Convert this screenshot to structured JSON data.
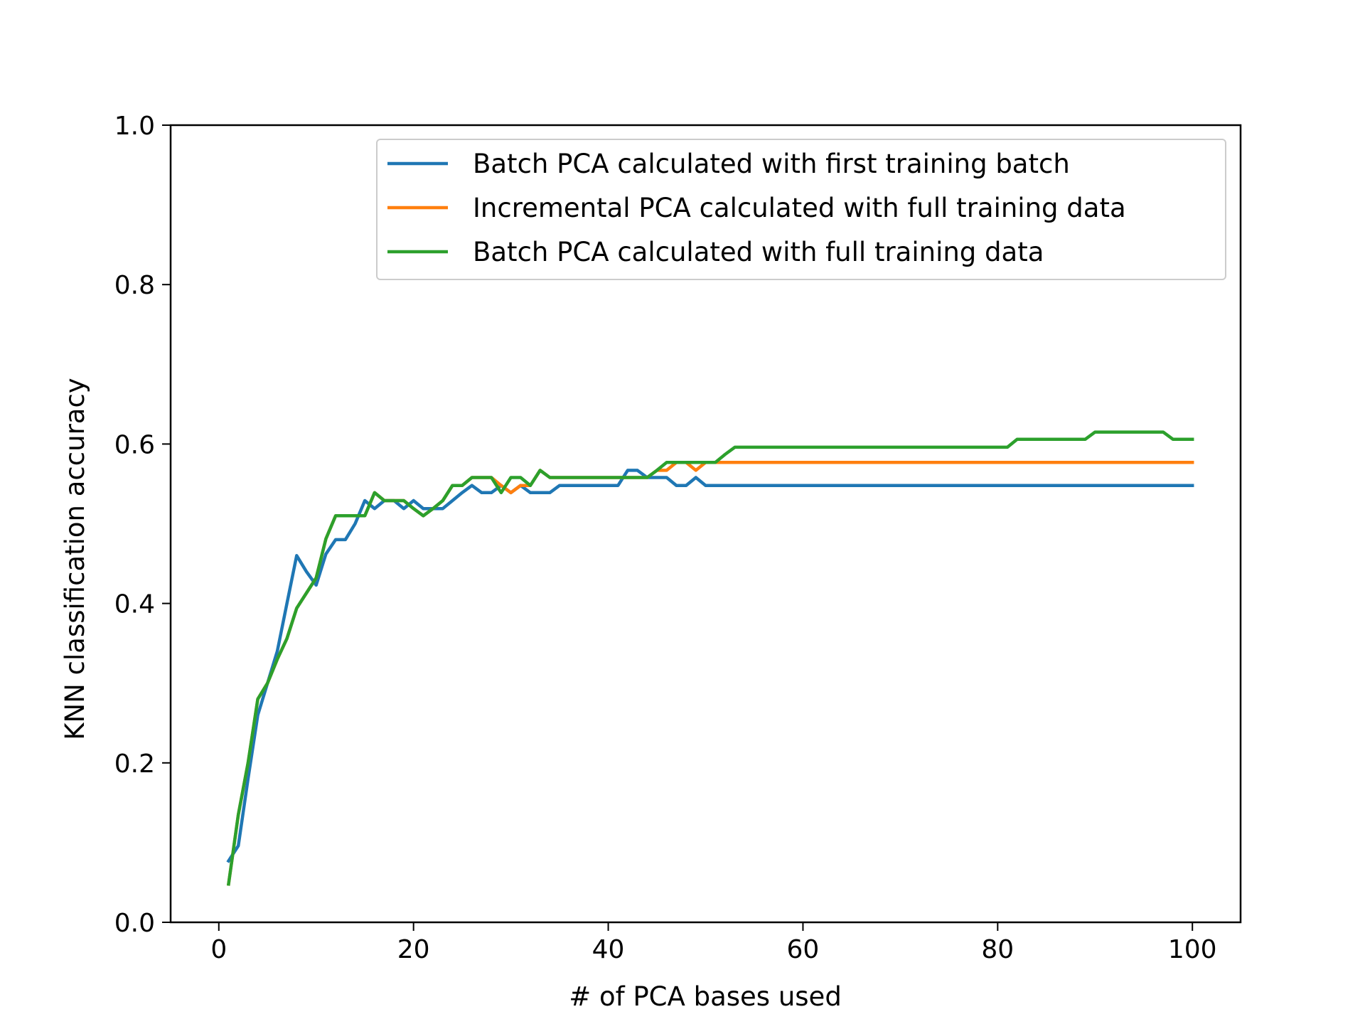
{
  "chart_data": {
    "type": "line",
    "title": "",
    "xlabel": "# of PCA bases used",
    "ylabel": "KNN classification accuracy",
    "xlim": [
      -4.95,
      104.95
    ],
    "ylim": [
      0.0,
      1.0
    ],
    "xticks": [
      0,
      20,
      40,
      60,
      80,
      100
    ],
    "xtick_labels": [
      "0",
      "20",
      "40",
      "60",
      "80",
      "100"
    ],
    "yticks": [
      0.0,
      0.2,
      0.4,
      0.6,
      0.8,
      1.0
    ],
    "ytick_labels": [
      "0.0",
      "0.2",
      "0.4",
      "0.6",
      "0.8",
      "1.0"
    ],
    "grid": false,
    "legend_position": "top-right",
    "series": [
      {
        "name": "Batch PCA calculated with first training batch",
        "color": "#1f77b4",
        "x": [
          1,
          2,
          3,
          4,
          5,
          6,
          7,
          8,
          9,
          10,
          11,
          12,
          13,
          14,
          15,
          16,
          17,
          18,
          19,
          20,
          21,
          22,
          23,
          24,
          25,
          26,
          27,
          28,
          29,
          30,
          31,
          32,
          33,
          34,
          35,
          36,
          37,
          38,
          39,
          40,
          41,
          42,
          43,
          44,
          45,
          46,
          47,
          48,
          49,
          50,
          51,
          52,
          53,
          54,
          55,
          56,
          57,
          58,
          59,
          60,
          61,
          62,
          63,
          64,
          65,
          66,
          67,
          68,
          69,
          70,
          71,
          72,
          73,
          74,
          75,
          76,
          77,
          78,
          79,
          80,
          81,
          82,
          83,
          84,
          85,
          86,
          87,
          88,
          89,
          90,
          91,
          92,
          93,
          94,
          95,
          96,
          97,
          98,
          99,
          100
        ],
        "y": [
          0.077,
          0.096,
          0.18,
          0.26,
          0.3,
          0.34,
          0.4,
          0.46,
          0.44,
          0.423,
          0.462,
          0.48,
          0.48,
          0.5,
          0.529,
          0.519,
          0.529,
          0.529,
          0.519,
          0.529,
          0.519,
          0.519,
          0.519,
          0.529,
          0.539,
          0.548,
          0.539,
          0.539,
          0.548,
          0.539,
          0.548,
          0.539,
          0.539,
          0.539,
          0.548,
          0.548,
          0.548,
          0.548,
          0.548,
          0.548,
          0.548,
          0.567,
          0.567,
          0.558,
          0.558,
          0.558,
          0.548,
          0.548,
          0.558,
          0.548,
          0.548,
          0.548,
          0.548,
          0.548,
          0.548,
          0.548,
          0.548,
          0.548,
          0.548,
          0.548,
          0.548,
          0.548,
          0.548,
          0.548,
          0.548,
          0.548,
          0.548,
          0.548,
          0.548,
          0.548,
          0.548,
          0.548,
          0.548,
          0.548,
          0.548,
          0.548,
          0.548,
          0.548,
          0.548,
          0.548,
          0.548,
          0.548,
          0.548,
          0.548,
          0.548,
          0.548,
          0.548,
          0.548,
          0.548,
          0.548,
          0.548,
          0.548,
          0.548,
          0.548,
          0.548,
          0.548,
          0.548,
          0.548,
          0.548,
          0.548
        ]
      },
      {
        "name": "Incremental PCA calculated with full training data",
        "color": "#ff7f0e",
        "x": [
          1,
          2,
          3,
          4,
          5,
          6,
          7,
          8,
          9,
          10,
          11,
          12,
          13,
          14,
          15,
          16,
          17,
          18,
          19,
          20,
          21,
          22,
          23,
          24,
          25,
          26,
          27,
          28,
          29,
          30,
          31,
          32,
          33,
          34,
          35,
          36,
          37,
          38,
          39,
          40,
          41,
          42,
          43,
          44,
          45,
          46,
          47,
          48,
          49,
          50,
          51,
          52,
          53,
          54,
          55,
          56,
          57,
          58,
          59,
          60,
          61,
          62,
          63,
          64,
          65,
          66,
          67,
          68,
          69,
          70,
          71,
          72,
          73,
          74,
          75,
          76,
          77,
          78,
          79,
          80,
          81,
          82,
          83,
          84,
          85,
          86,
          87,
          88,
          89,
          90,
          91,
          92,
          93,
          94,
          95,
          96,
          97,
          98,
          99,
          100
        ],
        "y": [
          0.048,
          0.135,
          0.2,
          0.28,
          0.3,
          0.33,
          0.356,
          0.394,
          0.413,
          0.432,
          0.481,
          0.51,
          0.51,
          0.51,
          0.51,
          0.539,
          0.529,
          0.529,
          0.529,
          0.519,
          0.51,
          0.519,
          0.529,
          0.548,
          0.548,
          0.558,
          0.558,
          0.558,
          0.548,
          0.539,
          0.548,
          0.548,
          0.567,
          0.558,
          0.558,
          0.558,
          0.558,
          0.558,
          0.558,
          0.558,
          0.558,
          0.558,
          0.558,
          0.558,
          0.567,
          0.567,
          0.577,
          0.577,
          0.567,
          0.577,
          0.577,
          0.577,
          0.577,
          0.577,
          0.577,
          0.577,
          0.577,
          0.577,
          0.577,
          0.577,
          0.577,
          0.577,
          0.577,
          0.577,
          0.577,
          0.577,
          0.577,
          0.577,
          0.577,
          0.577,
          0.577,
          0.577,
          0.577,
          0.577,
          0.577,
          0.577,
          0.577,
          0.577,
          0.577,
          0.577,
          0.577,
          0.577,
          0.577,
          0.577,
          0.577,
          0.577,
          0.577,
          0.577,
          0.577,
          0.577,
          0.577,
          0.577,
          0.577,
          0.577,
          0.577,
          0.577,
          0.577,
          0.577,
          0.577,
          0.577
        ]
      },
      {
        "name": "Batch PCA calculated with full training data",
        "color": "#2ca02c",
        "x": [
          1,
          2,
          3,
          4,
          5,
          6,
          7,
          8,
          9,
          10,
          11,
          12,
          13,
          14,
          15,
          16,
          17,
          18,
          19,
          20,
          21,
          22,
          23,
          24,
          25,
          26,
          27,
          28,
          29,
          30,
          31,
          32,
          33,
          34,
          35,
          36,
          37,
          38,
          39,
          40,
          41,
          42,
          43,
          44,
          45,
          46,
          47,
          48,
          49,
          50,
          51,
          52,
          53,
          54,
          55,
          56,
          57,
          58,
          59,
          60,
          61,
          62,
          63,
          64,
          65,
          66,
          67,
          68,
          69,
          70,
          71,
          72,
          73,
          74,
          75,
          76,
          77,
          78,
          79,
          80,
          81,
          82,
          83,
          84,
          85,
          86,
          87,
          88,
          89,
          90,
          91,
          92,
          93,
          94,
          95,
          96,
          97,
          98,
          99,
          100
        ],
        "y": [
          0.048,
          0.135,
          0.2,
          0.28,
          0.3,
          0.33,
          0.356,
          0.394,
          0.413,
          0.432,
          0.481,
          0.51,
          0.51,
          0.51,
          0.51,
          0.539,
          0.529,
          0.529,
          0.529,
          0.519,
          0.51,
          0.519,
          0.529,
          0.548,
          0.548,
          0.558,
          0.558,
          0.558,
          0.539,
          0.558,
          0.558,
          0.548,
          0.567,
          0.558,
          0.558,
          0.558,
          0.558,
          0.558,
          0.558,
          0.558,
          0.558,
          0.558,
          0.558,
          0.558,
          0.567,
          0.577,
          0.577,
          0.577,
          0.577,
          0.577,
          0.577,
          0.587,
          0.596,
          0.596,
          0.596,
          0.596,
          0.596,
          0.596,
          0.596,
          0.596,
          0.596,
          0.596,
          0.596,
          0.596,
          0.596,
          0.596,
          0.596,
          0.596,
          0.596,
          0.596,
          0.596,
          0.596,
          0.596,
          0.596,
          0.596,
          0.596,
          0.596,
          0.596,
          0.596,
          0.596,
          0.596,
          0.606,
          0.606,
          0.606,
          0.606,
          0.606,
          0.606,
          0.606,
          0.606,
          0.615,
          0.615,
          0.615,
          0.615,
          0.615,
          0.615,
          0.615,
          0.615,
          0.606,
          0.606,
          0.606
        ]
      }
    ]
  }
}
